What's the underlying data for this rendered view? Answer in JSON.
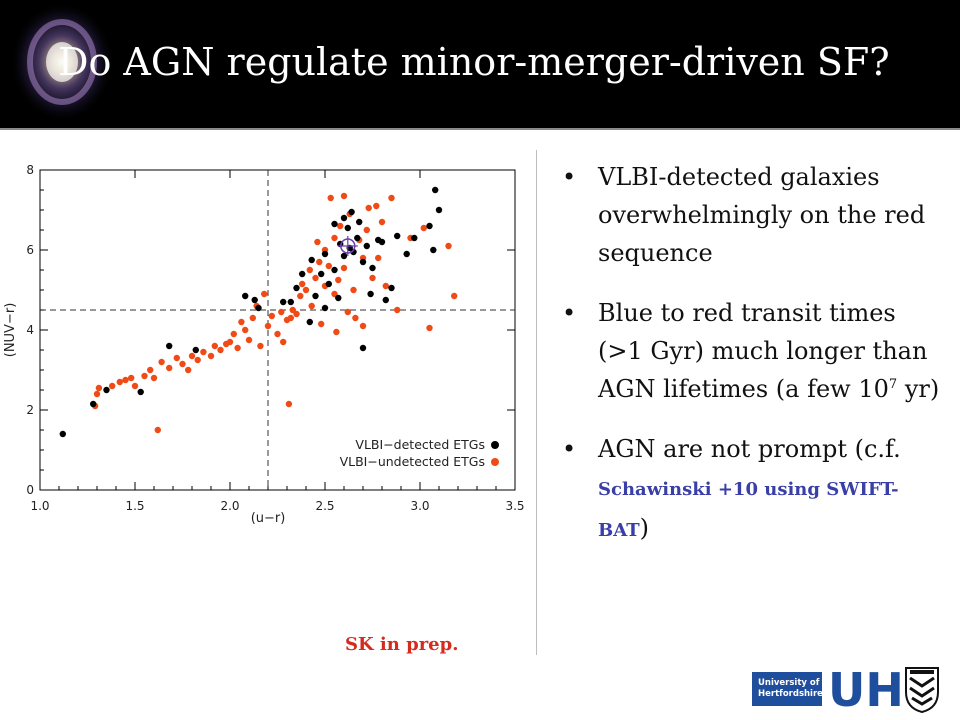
{
  "slide": {
    "title": "Do AGN regulate minor-merger-driven SF?",
    "credit": "SK in prep.",
    "bullets": [
      {
        "text_html": "VLBI-detected galaxies overwhelmingly on the red sequence"
      },
      {
        "text_html": "Blue to red transit times (>1 Gyr) much longer than AGN lifetimes (a few 10<sup>7</sup> yr)"
      },
      {
        "text_html": "AGN are not prompt (c.f. <span class=\"ref\">Schawinski +10 using SWIFT-BAT</span>)"
      }
    ],
    "logo": {
      "box_line1": "University of",
      "box_line2": "Hertfordshire",
      "letters": "UH"
    },
    "colors": {
      "title_bar": "#000000",
      "title_text": "#ffffff",
      "credit": "#d62a1e",
      "reference": "#3a3fa8",
      "logo_blue": "#1f4f9c",
      "detected": "#000000",
      "undetected": "#f04b16"
    }
  },
  "chart_data": {
    "type": "scatter",
    "xlabel": "(u−r)",
    "ylabel": "(NUV−r)",
    "xlim": [
      1.0,
      3.5
    ],
    "ylim": [
      0,
      8
    ],
    "xticks": [
      "1.0",
      "1.5",
      "2.0",
      "2.5",
      "3.0",
      "3.5"
    ],
    "yticks": [
      "0",
      "2",
      "4",
      "6",
      "8"
    ],
    "xtick_values": [
      1.0,
      1.5,
      2.0,
      2.5,
      3.0,
      3.5
    ],
    "ytick_values": [
      0,
      2,
      4,
      6,
      8
    ],
    "grid": false,
    "legend_position": "bottom-right",
    "reference_lines": {
      "vertical_x": 2.2,
      "horizontal_y": 4.5
    },
    "highlight": {
      "x": 2.62,
      "y": 6.1,
      "color": "#6a3fb0"
    },
    "series": [
      {
        "name": "VLBI−detected ETGs",
        "color": "#000000",
        "points": [
          [
            1.12,
            1.4
          ],
          [
            1.28,
            2.15
          ],
          [
            1.35,
            2.5
          ],
          [
            1.53,
            2.45
          ],
          [
            1.68,
            3.6
          ],
          [
            1.82,
            3.5
          ],
          [
            2.08,
            4.85
          ],
          [
            2.13,
            4.75
          ],
          [
            2.15,
            4.55
          ],
          [
            2.28,
            4.7
          ],
          [
            2.32,
            4.7
          ],
          [
            2.35,
            5.05
          ],
          [
            2.38,
            5.4
          ],
          [
            2.42,
            4.2
          ],
          [
            2.43,
            5.75
          ],
          [
            2.45,
            4.85
          ],
          [
            2.48,
            5.4
          ],
          [
            2.5,
            5.9
          ],
          [
            2.52,
            5.15
          ],
          [
            2.55,
            5.5
          ],
          [
            2.55,
            6.65
          ],
          [
            2.57,
            4.8
          ],
          [
            2.58,
            6.15
          ],
          [
            2.6,
            6.8
          ],
          [
            2.6,
            5.85
          ],
          [
            2.62,
            6.55
          ],
          [
            2.63,
            6.05
          ],
          [
            2.64,
            6.95
          ],
          [
            2.65,
            5.95
          ],
          [
            2.67,
            6.3
          ],
          [
            2.68,
            6.7
          ],
          [
            2.7,
            5.7
          ],
          [
            2.72,
            6.1
          ],
          [
            2.74,
            4.9
          ],
          [
            2.75,
            5.55
          ],
          [
            2.78,
            6.25
          ],
          [
            2.8,
            6.2
          ],
          [
            2.82,
            4.75
          ],
          [
            2.85,
            5.05
          ],
          [
            2.88,
            6.35
          ],
          [
            2.93,
            5.9
          ],
          [
            2.97,
            6.3
          ],
          [
            3.05,
            6.6
          ],
          [
            3.07,
            6.0
          ],
          [
            3.08,
            7.5
          ],
          [
            3.1,
            7.0
          ],
          [
            2.7,
            3.55
          ],
          [
            2.5,
            4.55
          ]
        ]
      },
      {
        "name": "VLBI−undetected ETGs",
        "color": "#f04b16",
        "points": [
          [
            1.29,
            2.1
          ],
          [
            1.3,
            2.4
          ],
          [
            1.31,
            2.55
          ],
          [
            1.38,
            2.6
          ],
          [
            1.42,
            2.7
          ],
          [
            1.45,
            2.75
          ],
          [
            1.48,
            2.8
          ],
          [
            1.5,
            2.6
          ],
          [
            1.55,
            2.85
          ],
          [
            1.58,
            3.0
          ],
          [
            1.6,
            2.8
          ],
          [
            1.62,
            1.5
          ],
          [
            1.64,
            3.2
          ],
          [
            1.68,
            3.05
          ],
          [
            1.72,
            3.3
          ],
          [
            1.75,
            3.15
          ],
          [
            1.78,
            3.0
          ],
          [
            1.8,
            3.35
          ],
          [
            1.83,
            3.25
          ],
          [
            1.86,
            3.45
          ],
          [
            1.9,
            3.35
          ],
          [
            1.92,
            3.6
          ],
          [
            1.95,
            3.5
          ],
          [
            1.98,
            3.65
          ],
          [
            2.0,
            3.7
          ],
          [
            2.02,
            3.9
          ],
          [
            2.04,
            3.55
          ],
          [
            2.06,
            4.2
          ],
          [
            2.08,
            4.0
          ],
          [
            2.1,
            3.75
          ],
          [
            2.12,
            4.3
          ],
          [
            2.14,
            4.6
          ],
          [
            2.16,
            3.6
          ],
          [
            2.18,
            4.9
          ],
          [
            2.2,
            4.1
          ],
          [
            2.22,
            4.35
          ],
          [
            2.25,
            3.9
          ],
          [
            2.27,
            4.45
          ],
          [
            2.28,
            3.7
          ],
          [
            2.3,
            4.25
          ],
          [
            2.31,
            2.15
          ],
          [
            2.33,
            4.5
          ],
          [
            2.35,
            4.4
          ],
          [
            2.37,
            4.85
          ],
          [
            2.38,
            5.15
          ],
          [
            2.4,
            5.0
          ],
          [
            2.42,
            5.5
          ],
          [
            2.43,
            4.6
          ],
          [
            2.45,
            5.3
          ],
          [
            2.47,
            5.7
          ],
          [
            2.48,
            4.15
          ],
          [
            2.5,
            6.0
          ],
          [
            2.5,
            5.1
          ],
          [
            2.52,
            5.6
          ],
          [
            2.53,
            7.3
          ],
          [
            2.55,
            6.3
          ],
          [
            2.55,
            4.9
          ],
          [
            2.57,
            5.25
          ],
          [
            2.58,
            6.6
          ],
          [
            2.6,
            5.55
          ],
          [
            2.6,
            7.35
          ],
          [
            2.62,
            4.45
          ],
          [
            2.63,
            6.9
          ],
          [
            2.65,
            5.0
          ],
          [
            2.66,
            4.3
          ],
          [
            2.68,
            6.25
          ],
          [
            2.7,
            5.8
          ],
          [
            2.7,
            4.1
          ],
          [
            2.72,
            6.5
          ],
          [
            2.73,
            7.05
          ],
          [
            2.75,
            5.3
          ],
          [
            2.77,
            7.1
          ],
          [
            2.78,
            5.8
          ],
          [
            2.8,
            6.7
          ],
          [
            2.82,
            5.1
          ],
          [
            2.85,
            7.3
          ],
          [
            2.88,
            4.5
          ],
          [
            2.95,
            6.3
          ],
          [
            3.02,
            6.55
          ],
          [
            3.05,
            4.05
          ],
          [
            3.15,
            6.1
          ],
          [
            3.18,
            4.85
          ],
          [
            2.32,
            4.3
          ],
          [
            2.46,
            6.2
          ],
          [
            2.56,
            3.95
          ]
        ]
      }
    ]
  }
}
